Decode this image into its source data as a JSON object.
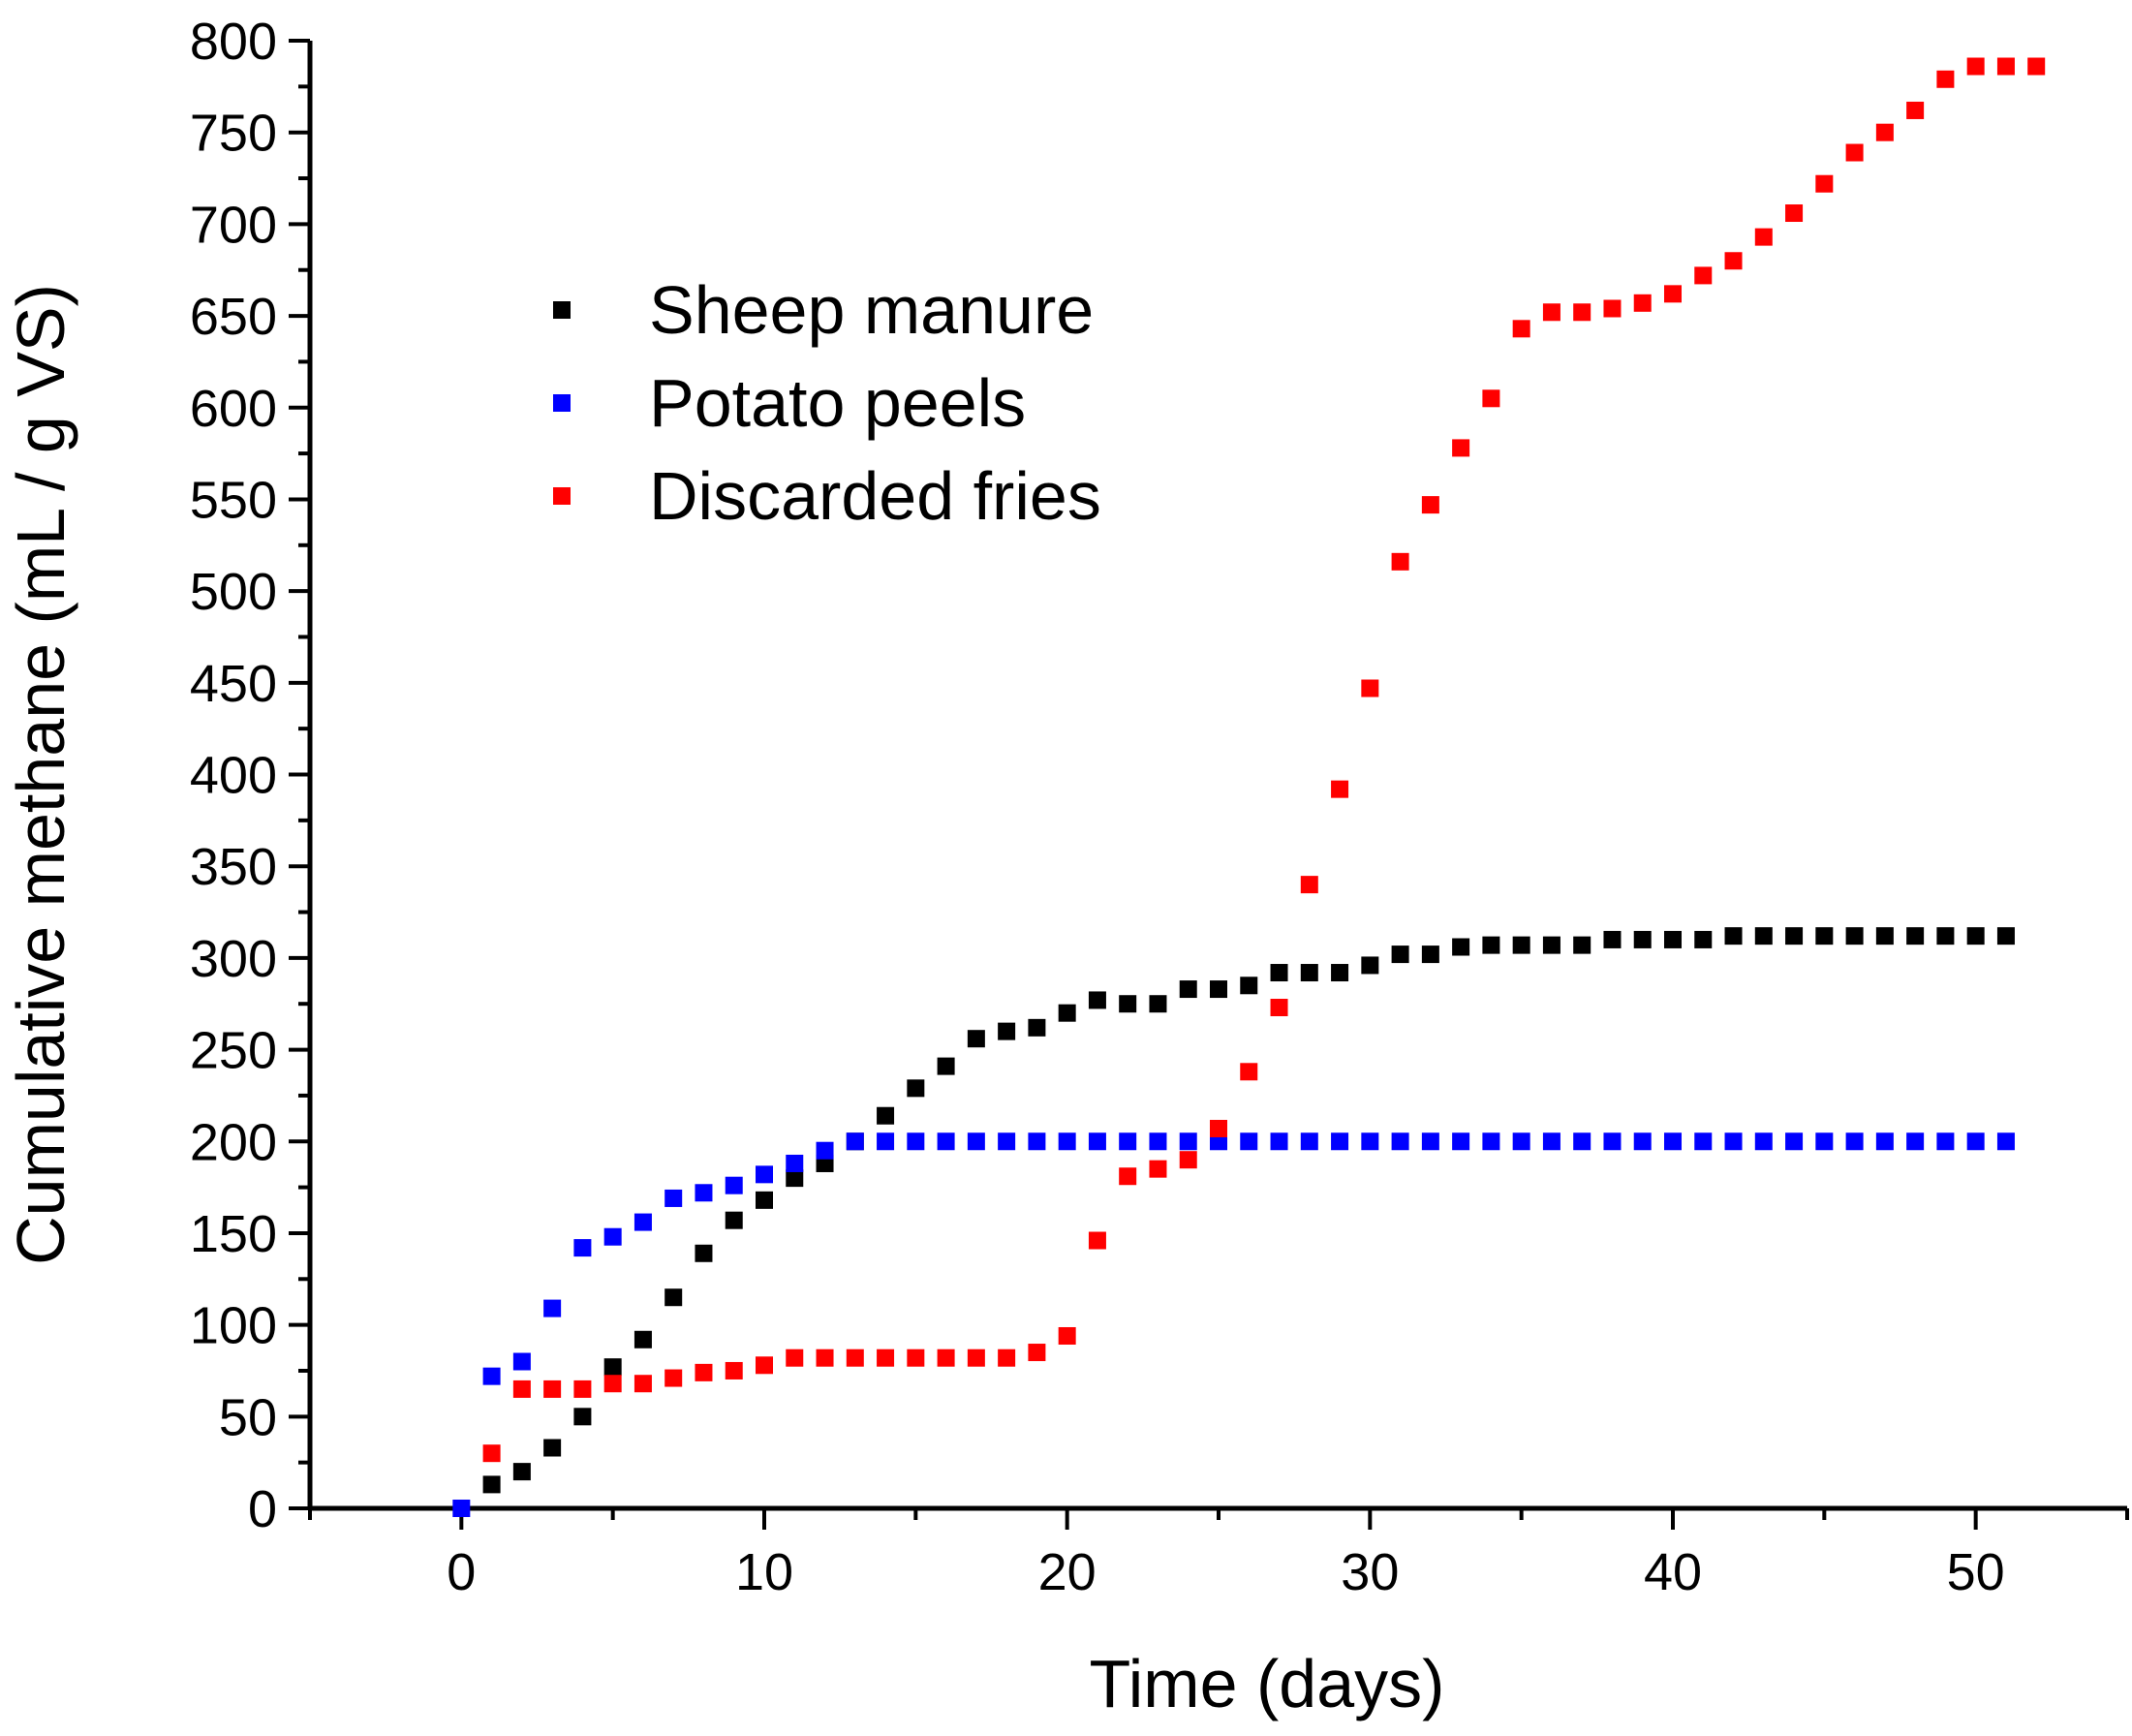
{
  "chart_data": {
    "type": "scatter",
    "title": "",
    "xlabel": "Time (days)",
    "ylabel": "Cumulative methane (mL / g VS)",
    "xlim": [
      -5,
      55
    ],
    "ylim": [
      0,
      800
    ],
    "x_ticks": [
      0,
      10,
      20,
      30,
      40,
      50
    ],
    "y_ticks": [
      0,
      50,
      100,
      150,
      200,
      250,
      300,
      350,
      400,
      450,
      500,
      550,
      600,
      650,
      700,
      750,
      800
    ],
    "grid": false,
    "legend_position": "top-left",
    "series": [
      {
        "name": "Sheep manure",
        "color": "#000000",
        "x": [
          1,
          2,
          3,
          4,
          5,
          6,
          7,
          8,
          9,
          10,
          11,
          12,
          13,
          14,
          15,
          16,
          17,
          18,
          19,
          20,
          21,
          22,
          23,
          24,
          25,
          26,
          27,
          28,
          29,
          30,
          31,
          32,
          33,
          34,
          35,
          36,
          37,
          38,
          39,
          40,
          41,
          42,
          43,
          44,
          45,
          46,
          47,
          48,
          49,
          50,
          51
        ],
        "y": [
          13,
          20,
          33,
          50,
          77,
          92,
          115,
          139,
          157,
          168,
          180,
          188,
          200,
          214,
          229,
          241,
          256,
          260,
          262,
          270,
          277,
          275,
          275,
          283,
          283,
          285,
          292,
          292,
          292,
          296,
          302,
          302,
          306,
          307,
          307,
          307,
          307,
          310,
          310,
          310,
          310,
          312,
          312,
          312,
          312,
          312,
          312,
          312,
          312,
          312,
          312
        ]
      },
      {
        "name": "Potato peels",
        "color": "#0000ff",
        "x": [
          0,
          1,
          2,
          3,
          4,
          5,
          6,
          7,
          8,
          9,
          10,
          11,
          12,
          13,
          14,
          15,
          16,
          17,
          18,
          19,
          20,
          21,
          22,
          23,
          24,
          25,
          26,
          27,
          28,
          29,
          30,
          31,
          32,
          33,
          34,
          35,
          36,
          37,
          38,
          39,
          40,
          41,
          42,
          43,
          44,
          45,
          46,
          47,
          48,
          49,
          50,
          51
        ],
        "y": [
          0,
          72,
          80,
          109,
          142,
          148,
          156,
          169,
          172,
          176,
          182,
          188,
          195,
          200,
          200,
          200,
          200,
          200,
          200,
          200,
          200,
          200,
          200,
          200,
          200,
          200,
          200,
          200,
          200,
          200,
          200,
          200,
          200,
          200,
          200,
          200,
          200,
          200,
          200,
          200,
          200,
          200,
          200,
          200,
          200,
          200,
          200,
          200,
          200,
          200,
          200,
          200
        ]
      },
      {
        "name": "Discarded fries",
        "color": "#ff0000",
        "x": [
          1,
          2,
          3,
          4,
          5,
          6,
          7,
          8,
          9,
          10,
          11,
          12,
          13,
          14,
          15,
          16,
          17,
          18,
          19,
          20,
          21,
          22,
          23,
          24,
          25,
          26,
          27,
          28,
          29,
          30,
          31,
          32,
          33,
          34,
          35,
          36,
          37,
          38,
          39,
          40,
          41,
          42,
          43,
          44,
          45,
          46,
          47,
          48,
          49,
          50,
          51,
          52
        ],
        "y": [
          30,
          65,
          65,
          65,
          68,
          68,
          71,
          74,
          75,
          78,
          82,
          82,
          82,
          82,
          82,
          82,
          82,
          82,
          85,
          94,
          146,
          181,
          185,
          190,
          207,
          238,
          273,
          340,
          392,
          447,
          516,
          547,
          578,
          605,
          643,
          652,
          652,
          654,
          657,
          662,
          672,
          680,
          693,
          706,
          722,
          739,
          750,
          762,
          779,
          786,
          786,
          786
        ]
      }
    ]
  }
}
